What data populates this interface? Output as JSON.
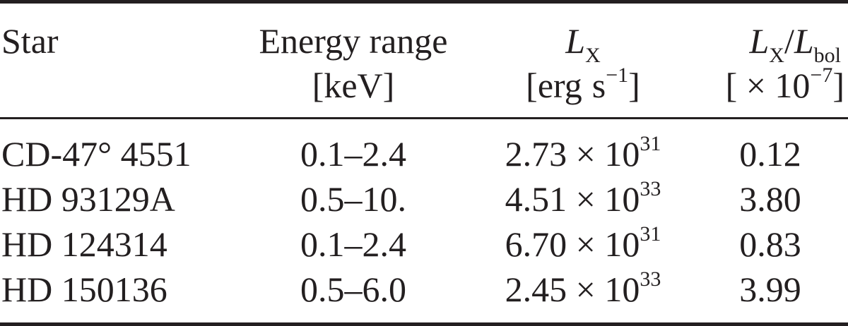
{
  "table": {
    "headers": {
      "star": "Star",
      "energy_line1": "Energy range",
      "energy_line2": "[keV]",
      "lx_symbol": "L",
      "lx_sub": "X",
      "lx_unit_open": "[erg",
      "lx_unit_s": "s",
      "lx_unit_exp": "−1",
      "lx_unit_close": "]",
      "ratio_l1": "L",
      "ratio_sub1": "X",
      "ratio_slash": "/",
      "ratio_l2": "L",
      "ratio_sub2": "bol",
      "ratio_unit_open": "[ × 10",
      "ratio_unit_exp": "−7",
      "ratio_unit_close": "]"
    },
    "rows": [
      {
        "star": "CD-47° 4551",
        "energy": "0.1–2.4",
        "lx_mant": "2.73 × 10",
        "lx_exp": "31",
        "ratio": "0.12"
      },
      {
        "star": "HD 93129A",
        "energy": "0.5–10.",
        "lx_mant": "4.51 × 10",
        "lx_exp": "33",
        "ratio": "3.80"
      },
      {
        "star": "HD 124314",
        "energy": "0.1–2.4",
        "lx_mant": "6.70 × 10",
        "lx_exp": "31",
        "ratio": "0.83"
      },
      {
        "star": "HD 150136",
        "energy": "0.5–6.0",
        "lx_mant": "2.45 × 10",
        "lx_exp": "33",
        "ratio": "3.99"
      }
    ]
  }
}
